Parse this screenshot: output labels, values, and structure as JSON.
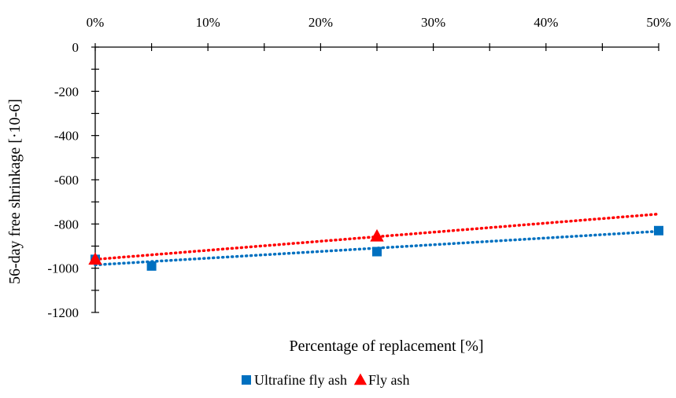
{
  "chart_data": {
    "type": "scatter",
    "title": "",
    "xlabel": "Percentage of replacement [%]",
    "ylabel": "56-day free shrinkage [·10-6]",
    "xlim": [
      0,
      0.5
    ],
    "ylim": [
      -1200,
      0
    ],
    "x_axis_position": "top",
    "x_tick_values": [
      0,
      0.1,
      0.2,
      0.3,
      0.4,
      0.5
    ],
    "x_tick_labels": [
      "0%",
      "10%",
      "20%",
      "30%",
      "40%",
      "50%"
    ],
    "y_tick_values": [
      0,
      -200,
      -400,
      -600,
      -800,
      -1000,
      -1200
    ],
    "y_tick_labels": [
      "0",
      "-200",
      "-400",
      "-600",
      "-800",
      "-1000",
      "-1200"
    ],
    "grid": false,
    "legend_position": "bottom",
    "series": [
      {
        "name": "Ultrafine fly ash",
        "marker": "square",
        "color": "#0070C0",
        "x": [
          0,
          0.05,
          0.25,
          0.5
        ],
        "y": [
          -960,
          -990,
          -925,
          -830
        ],
        "trendline": {
          "type": "linear",
          "from": [
            0,
            -985
          ],
          "to": [
            0.5,
            -833
          ],
          "style": "dotted"
        }
      },
      {
        "name": "Fly ash",
        "marker": "triangle",
        "color": "#FF0000",
        "x": [
          0,
          0.25
        ],
        "y": [
          -960,
          -855
        ],
        "trendline": {
          "type": "linear",
          "from": [
            0,
            -960
          ],
          "to": [
            0.5,
            -755
          ],
          "style": "dotted"
        }
      }
    ]
  }
}
